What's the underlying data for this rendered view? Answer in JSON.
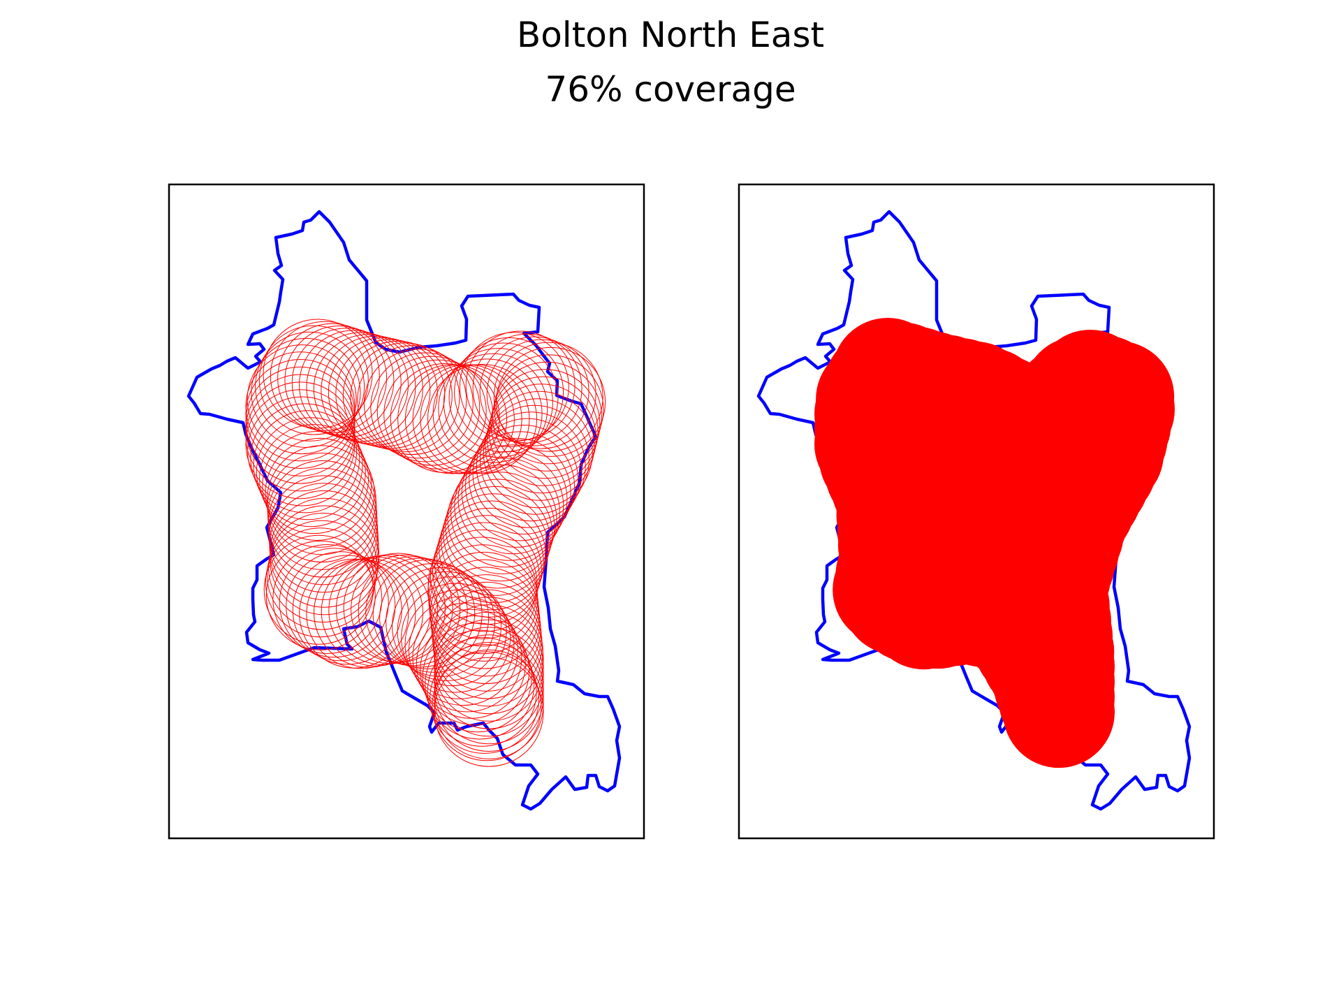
{
  "figure": {
    "title": "Bolton North East",
    "subtitle": "76% coverage"
  },
  "colors": {
    "boundary": "#0000ff",
    "coverage": "#ff0000",
    "frame": "#000000",
    "background": "#ffffff"
  },
  "panels": [
    {
      "name": "left-panel",
      "style": "circle-outlines",
      "description_visible": false
    },
    {
      "name": "right-panel",
      "style": "filled-union",
      "description_visible": false
    }
  ]
}
